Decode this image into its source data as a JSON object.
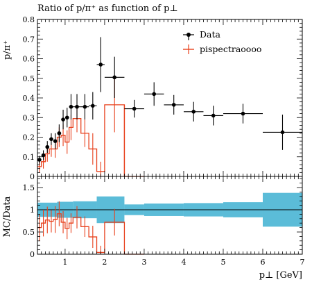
{
  "chart_data": {
    "type": "line",
    "title": "Ratio of p/π⁺ as function of p⊥",
    "xlabel": "p⊥ [GeV]",
    "ylabel_main": "p/π⁺",
    "ylabel_ratio": "MC/Data",
    "xlim": [
      0.3,
      7.0
    ],
    "ylim_main": [
      0.0,
      0.8
    ],
    "ylim_ratio": [
      0.0,
      1.75
    ],
    "x_ticks": [
      1,
      2,
      3,
      4,
      5,
      6,
      7
    ],
    "y_ticks_main": [
      0.1,
      0.2,
      0.3,
      0.4,
      0.5,
      0.6,
      0.7,
      0.8
    ],
    "y_ticks_ratio": [
      0.5,
      1.0,
      1.5
    ],
    "zero_labels": {
      "main": "0",
      "ratio": "0"
    },
    "legend_position": "top-right",
    "legend": [
      "Data",
      "pispectraoooo"
    ],
    "colors": {
      "data": "#000000",
      "mc": "#e8401c",
      "band": "#5bbcd8",
      "band_edge": "#3a9cc0"
    },
    "series": [
      {
        "name": "Data",
        "x": [
          0.35,
          0.45,
          0.55,
          0.65,
          0.75,
          0.85,
          0.95,
          1.05,
          1.15,
          1.3,
          1.5,
          1.7,
          1.9,
          2.25,
          2.75,
          3.25,
          3.75,
          4.25,
          4.75,
          5.5,
          6.5
        ],
        "xerr": [
          0.05,
          0.05,
          0.05,
          0.05,
          0.05,
          0.05,
          0.05,
          0.05,
          0.05,
          0.1,
          0.1,
          0.1,
          0.1,
          0.25,
          0.25,
          0.25,
          0.25,
          0.25,
          0.25,
          0.5,
          0.5
        ],
        "y": [
          0.085,
          0.108,
          0.15,
          0.19,
          0.18,
          0.22,
          0.29,
          0.3,
          0.355,
          0.355,
          0.355,
          0.36,
          0.57,
          0.505,
          0.345,
          0.42,
          0.365,
          0.33,
          0.31,
          0.32,
          0.225
        ],
        "yerr": [
          0.02,
          0.025,
          0.03,
          0.03,
          0.04,
          0.045,
          0.05,
          0.05,
          0.065,
          0.065,
          0.065,
          0.07,
          0.14,
          0.105,
          0.045,
          0.06,
          0.05,
          0.05,
          0.05,
          0.05,
          0.09
        ]
      },
      {
        "name": "pispectraoooo",
        "bin_edges": [
          0.3,
          0.4,
          0.5,
          0.6,
          0.7,
          0.8,
          0.9,
          1.0,
          1.1,
          1.2,
          1.4,
          1.6,
          1.8,
          2.0,
          2.5,
          3.0
        ],
        "values": [
          0.05,
          0.075,
          0.115,
          0.14,
          0.14,
          0.2,
          0.21,
          0.175,
          0.25,
          0.295,
          0.22,
          0.14,
          0.025,
          0.365,
          0.0
        ],
        "errors": [
          0.03,
          0.035,
          0.04,
          0.04,
          0.045,
          0.05,
          0.055,
          0.06,
          0.065,
          0.07,
          0.07,
          0.08,
          0.05,
          0.14,
          0.0
        ]
      }
    ],
    "ratio": {
      "band_bins": [
        [
          0.3,
          0.8,
          0.16
        ],
        [
          0.8,
          1.2,
          0.18
        ],
        [
          1.2,
          1.8,
          0.19
        ],
        [
          1.8,
          2.5,
          0.3
        ],
        [
          2.5,
          3.0,
          0.12
        ],
        [
          3.0,
          4.0,
          0.14
        ],
        [
          4.0,
          5.0,
          0.15
        ],
        [
          5.0,
          6.0,
          0.17
        ],
        [
          6.0,
          7.0,
          0.38
        ]
      ],
      "mc": [
        0.6,
        0.7,
        0.77,
        0.74,
        0.78,
        0.91,
        0.72,
        0.58,
        0.7,
        0.83,
        0.62,
        0.39,
        0.04,
        0.72,
        0.0
      ],
      "mc_err": [
        0.3,
        0.3,
        0.3,
        0.25,
        0.3,
        0.28,
        0.25,
        0.24,
        0.22,
        0.25,
        0.23,
        0.25,
        0.15,
        0.3,
        0.0
      ]
    }
  }
}
